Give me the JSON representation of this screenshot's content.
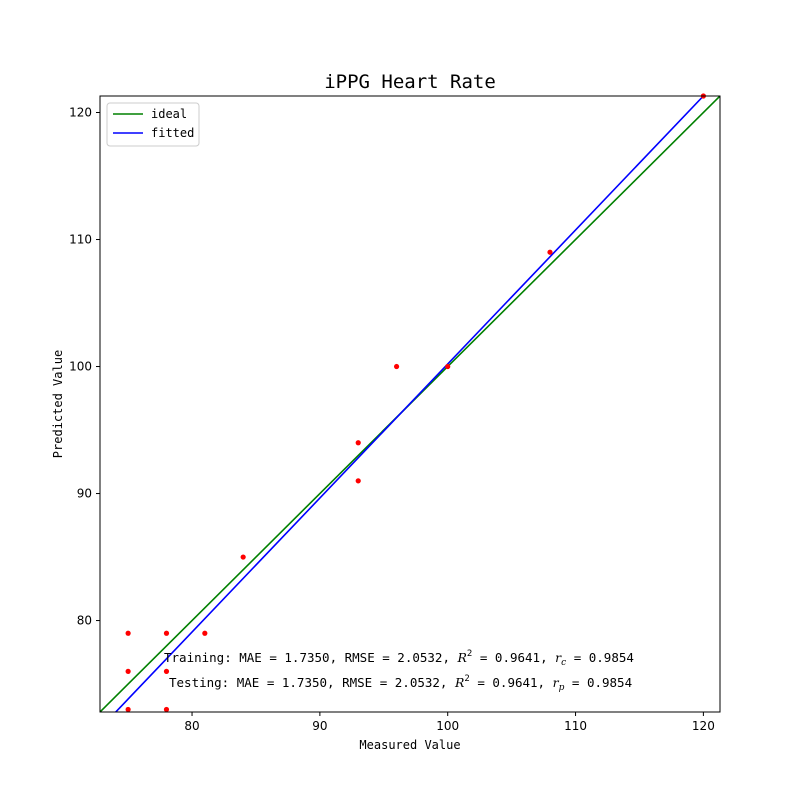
{
  "chart_data": {
    "type": "scatter",
    "title": "iPPG Heart Rate",
    "xlabel": "Measured Value",
    "ylabel": "Predicted Value",
    "xlim": [
      72.8,
      121.3
    ],
    "ylim": [
      72.8,
      121.3
    ],
    "xticks": [
      80,
      90,
      100,
      110,
      120
    ],
    "yticks": [
      80,
      90,
      100,
      110,
      120
    ],
    "grid": false,
    "legend": {
      "placement": "top-left",
      "entries": [
        {
          "name": "ideal",
          "color": "#008000"
        },
        {
          "name": "fitted",
          "color": "#0000ff"
        }
      ]
    },
    "series": [
      {
        "name": "ideal",
        "kind": "line",
        "color": "#008000",
        "x": [
          72.8,
          121.3
        ],
        "y": [
          72.8,
          121.3
        ]
      },
      {
        "name": "fitted",
        "kind": "line",
        "color": "#0000ff",
        "x": [
          72.8,
          120.0
        ],
        "y": [
          71.5,
          121.3
        ]
      },
      {
        "kind": "scatter",
        "color": "#ff0000",
        "x": [
          75,
          75,
          75,
          78,
          78,
          78,
          81,
          84,
          93,
          93,
          96,
          100,
          108,
          120
        ],
        "y": [
          79,
          76,
          73,
          79,
          76,
          73,
          79,
          85,
          94,
          91,
          100,
          100,
          109,
          121.3
        ]
      }
    ],
    "annotations": [
      {
        "prefix": "Training: MAE = 1.7350, RMSE = 2.0532, ",
        "r_symbol": "R",
        "r_power": "2",
        "r_value": " = 0.9641, ",
        "rc_symbol": "r",
        "rc_sub": "c",
        "rc_value": " = 0.9854"
      },
      {
        "prefix": "Testing: MAE = 1.7350, RMSE = 2.0532, ",
        "r_symbol": "R",
        "r_power": "2",
        "r_value": " = 0.9641, ",
        "rc_symbol": "r",
        "rc_sub": "p",
        "rc_value": " = 0.9854"
      }
    ]
  }
}
